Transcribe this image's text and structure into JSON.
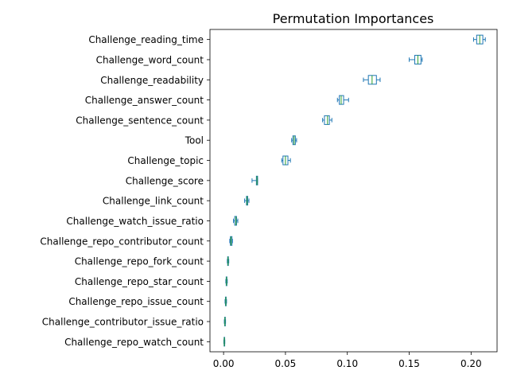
{
  "chart_data": {
    "type": "boxplot",
    "orientation": "horizontal",
    "title": "Permutation Importances",
    "xlabel": "",
    "ylabel": "",
    "xlim": [
      -0.011,
      0.221
    ],
    "xticks": [
      0.0,
      0.05,
      0.1,
      0.15,
      0.2
    ],
    "xtick_labels": [
      "0.00",
      "0.05",
      "0.10",
      "0.15",
      "0.20"
    ],
    "grid": false,
    "colors": {
      "box": "#1f77b4",
      "median": "#2ca02c",
      "flier": "#1f77b4"
    },
    "features": [
      {
        "name": "Challenge_reading_time",
        "whislo": 0.202,
        "q1": 0.2045,
        "med": 0.207,
        "q3": 0.2095,
        "whishi": 0.2115
      },
      {
        "name": "Challenge_word_count",
        "whislo": 0.15,
        "q1": 0.1545,
        "med": 0.157,
        "q3": 0.1595,
        "whishi": 0.1605
      },
      {
        "name": "Challenge_readability",
        "whislo": 0.113,
        "q1": 0.117,
        "med": 0.12,
        "q3": 0.1235,
        "whishi": 0.1265
      },
      {
        "name": "Challenge_answer_count",
        "whislo": 0.092,
        "q1": 0.0935,
        "med": 0.095,
        "q3": 0.097,
        "whishi": 0.101
      },
      {
        "name": "Challenge_sentence_count",
        "whislo": 0.08,
        "q1": 0.0815,
        "med": 0.084,
        "q3": 0.0855,
        "whishi": 0.0875
      },
      {
        "name": "Tool",
        "whislo": 0.055,
        "q1": 0.056,
        "med": 0.057,
        "q3": 0.058,
        "whishi": 0.059
      },
      {
        "name": "Challenge_topic",
        "whislo": 0.047,
        "q1": 0.048,
        "med": 0.05,
        "q3": 0.052,
        "whishi": 0.054
      },
      {
        "name": "Challenge_score",
        "whislo": 0.023,
        "q1": 0.0265,
        "med": 0.027,
        "q3": 0.0275,
        "whishi": 0.0275
      },
      {
        "name": "Challenge_link_count",
        "whislo": 0.017,
        "q1": 0.0185,
        "med": 0.019,
        "q3": 0.0195,
        "whishi": 0.0205
      },
      {
        "name": "Challenge_watch_issue_ratio",
        "whislo": 0.008,
        "q1": 0.009,
        "med": 0.01,
        "q3": 0.0105,
        "whishi": 0.0115
      },
      {
        "name": "Challenge_repo_contributor_count",
        "whislo": 0.005,
        "q1": 0.0055,
        "med": 0.006,
        "q3": 0.0068,
        "whishi": 0.0072
      },
      {
        "name": "Challenge_repo_fork_count",
        "whislo": 0.003,
        "q1": 0.0033,
        "med": 0.0036,
        "q3": 0.0039,
        "whishi": 0.0042
      },
      {
        "name": "Challenge_repo_star_count",
        "whislo": 0.0018,
        "q1": 0.0021,
        "med": 0.0024,
        "q3": 0.0027,
        "whishi": 0.003
      },
      {
        "name": "Challenge_repo_issue_count",
        "whislo": 0.0012,
        "q1": 0.0015,
        "med": 0.0018,
        "q3": 0.0021,
        "whishi": 0.0024
      },
      {
        "name": "Challenge_contributor_issue_ratio",
        "whislo": 0.0006,
        "q1": 0.0009,
        "med": 0.0011,
        "q3": 0.0013,
        "whishi": 0.0016
      },
      {
        "name": "Challenge_repo_watch_count",
        "whislo": 0.0002,
        "q1": 0.0004,
        "med": 0.0006,
        "q3": 0.0008,
        "whishi": 0.001
      }
    ]
  }
}
